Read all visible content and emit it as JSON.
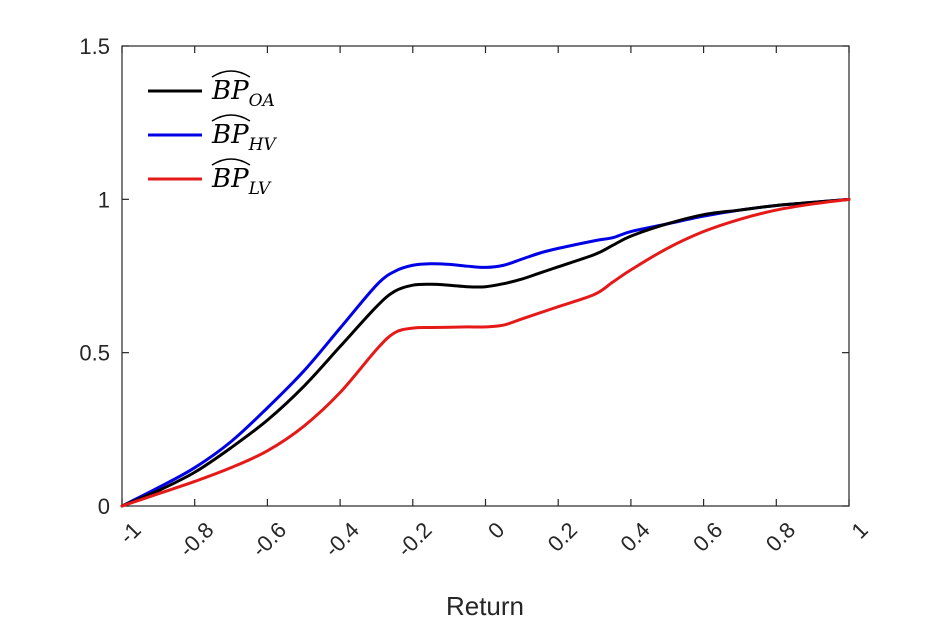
{
  "chart_data": {
    "type": "line",
    "title": "",
    "xlabel": "Return",
    "ylabel": "",
    "xlim": [
      -1,
      1
    ],
    "ylim": [
      0,
      1.5
    ],
    "x_ticks": [
      -1,
      -0.8,
      -0.6,
      -0.4,
      -0.2,
      0,
      0.2,
      0.4,
      0.6,
      0.8,
      1
    ],
    "x_tick_labels": [
      "-1",
      "-0.8",
      "-0.6",
      "-0.4",
      "-0.2",
      "0",
      "0.2",
      "0.4",
      "0.6",
      "0.8",
      "1"
    ],
    "y_ticks": [
      0,
      0.5,
      1,
      1.5
    ],
    "y_tick_labels": [
      "0",
      "0.5",
      "1",
      "1.5"
    ],
    "grid": false,
    "legend_position": "top-left",
    "x": [
      -1,
      -0.9,
      -0.8,
      -0.7,
      -0.6,
      -0.5,
      -0.4,
      -0.3,
      -0.25,
      -0.2,
      -0.15,
      -0.1,
      -0.05,
      0,
      0.05,
      0.1,
      0.15,
      0.2,
      0.3,
      0.35,
      0.4,
      0.5,
      0.6,
      0.7,
      0.8,
      0.9,
      1
    ],
    "series": [
      {
        "name": "BP",
        "subscript": "OA",
        "color": "#000000",
        "values": [
          0,
          0.05,
          0.11,
          0.19,
          0.28,
          0.39,
          0.52,
          0.65,
          0.7,
          0.72,
          0.723,
          0.72,
          0.715,
          0.715,
          0.725,
          0.74,
          0.76,
          0.78,
          0.82,
          0.85,
          0.88,
          0.92,
          0.95,
          0.965,
          0.98,
          0.99,
          1.0
        ]
      },
      {
        "name": "BP",
        "subscript": "HV",
        "color": "#0000e6",
        "values": [
          0,
          0.06,
          0.125,
          0.21,
          0.32,
          0.44,
          0.58,
          0.72,
          0.765,
          0.785,
          0.79,
          0.788,
          0.782,
          0.778,
          0.785,
          0.805,
          0.825,
          0.84,
          0.865,
          0.875,
          0.895,
          0.92,
          0.945,
          0.965,
          0.98,
          0.99,
          1.0
        ]
      },
      {
        "name": "BP",
        "subscript": "LV",
        "color": "#e61919",
        "values": [
          0,
          0.04,
          0.08,
          0.125,
          0.18,
          0.26,
          0.37,
          0.51,
          0.565,
          0.58,
          0.582,
          0.583,
          0.584,
          0.584,
          0.59,
          0.61,
          0.63,
          0.65,
          0.69,
          0.73,
          0.77,
          0.84,
          0.895,
          0.935,
          0.965,
          0.985,
          1.0
        ]
      }
    ]
  }
}
